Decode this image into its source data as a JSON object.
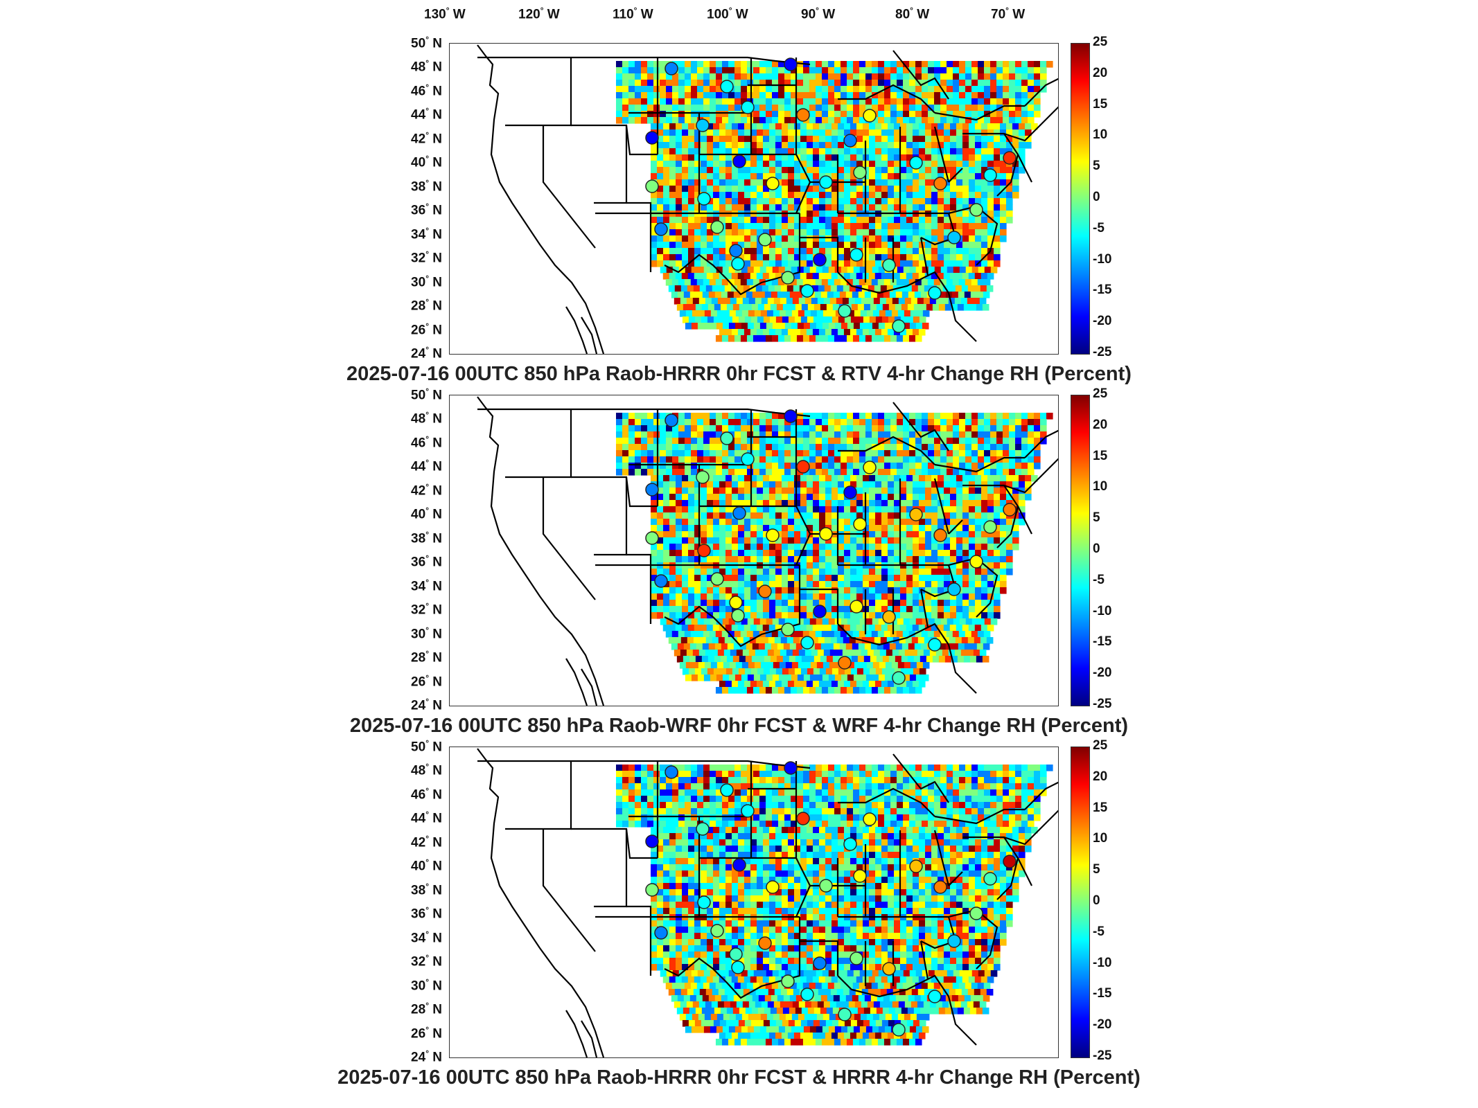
{
  "longitude_labels": [
    {
      "value": "130",
      "unit": "W"
    },
    {
      "value": "120",
      "unit": "W"
    },
    {
      "value": "110",
      "unit": "W"
    },
    {
      "value": "100",
      "unit": "W"
    },
    {
      "value": "90",
      "unit": "W"
    },
    {
      "value": "80",
      "unit": "W"
    },
    {
      "value": "70",
      "unit": "W"
    }
  ],
  "latitude_labels": [
    "50",
    "48",
    "46",
    "44",
    "42",
    "40",
    "38",
    "36",
    "34",
    "32",
    "30",
    "28",
    "26",
    "24"
  ],
  "latitude_unit": "N",
  "colorbar": {
    "ticks": [
      "25",
      "20",
      "15",
      "10",
      "5",
      "0",
      "-5",
      "-10",
      "-15",
      "-20",
      "-25"
    ],
    "range": [
      -25,
      25
    ],
    "colors": [
      "#000080",
      "#0000ff",
      "#0080ff",
      "#00ffff",
      "#80ff80",
      "#ffff00",
      "#ff7f00",
      "#ff0000",
      "#800000"
    ]
  },
  "panels": [
    {
      "title": "2025-07-16 00UTC 850 hPa Raob-HRRR 0hr FCST & RTV 4-hr Change RH (Percent)"
    },
    {
      "title": "2025-07-16 00UTC 850 hPa Raob-WRF 0hr FCST & WRF 4-hr Change RH (Percent)"
    },
    {
      "title": "2025-07-16 00UTC 850 hPa Raob-HRRR 0hr FCST & HRRR 4-hr Change RH (Percent)"
    }
  ]
}
